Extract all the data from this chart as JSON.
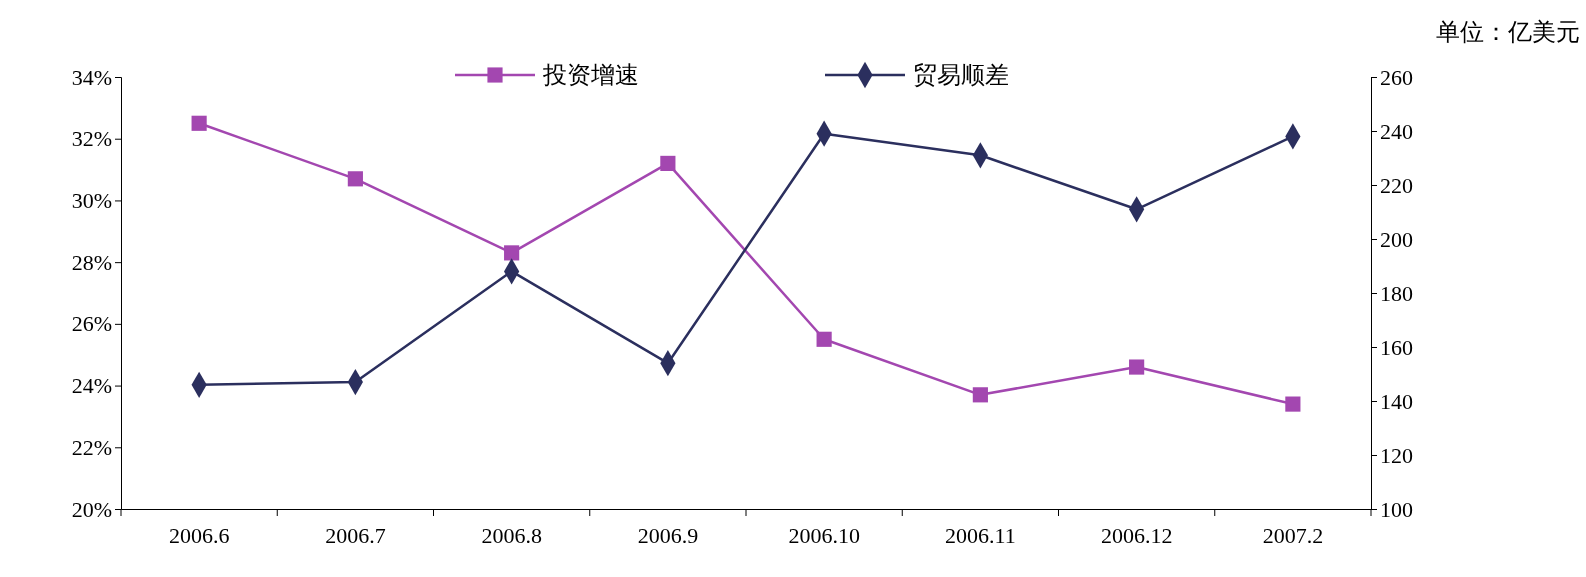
{
  "chart_data": {
    "type": "line",
    "categories": [
      "2006.6",
      "2006.7",
      "2006.8",
      "2006.9",
      "2006.10",
      "2006.11",
      "2006.12",
      "2007.2"
    ],
    "series": [
      {
        "name": "投资增速",
        "color": "#a347b0",
        "marker": "square",
        "values": [
          32.5,
          30.7,
          28.3,
          31.2,
          25.5,
          23.7,
          24.6,
          23.4
        ]
      },
      {
        "name": "贸易顺差",
        "color": "#2b2f5e",
        "marker": "diamond",
        "axis": "y2",
        "values": [
          146,
          147,
          188,
          154,
          239,
          231,
          211,
          238
        ]
      }
    ],
    "ylim": [
      20,
      34
    ],
    "yticks": [
      {
        "value": 20,
        "label": "20%"
      },
      {
        "value": 22,
        "label": "22%"
      },
      {
        "value": 24,
        "label": "24%"
      },
      {
        "value": 26,
        "label": "26%"
      },
      {
        "value": 28,
        "label": "28%"
      },
      {
        "value": 30,
        "label": "30%"
      },
      {
        "value": 32,
        "label": "32%"
      },
      {
        "value": 34,
        "label": "34%"
      }
    ],
    "y2lim": [
      100,
      260
    ],
    "y2ticks": [
      100,
      120,
      140,
      160,
      180,
      200,
      220,
      240,
      260
    ],
    "annotations": [
      "单位：亿美元"
    ],
    "legend": "top",
    "grid": false
  }
}
